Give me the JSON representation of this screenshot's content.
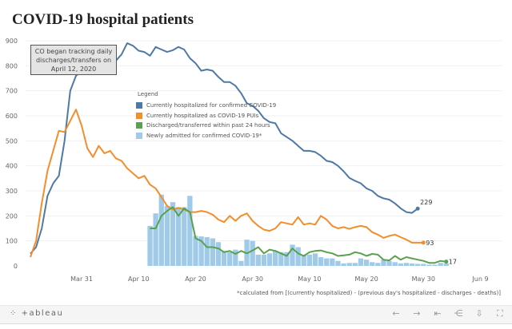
{
  "page_title": "COVID-19 hospital patients",
  "annotation": "CO began tracking daily discharges/transfers on April 12, 2020",
  "footnote": "*calculated from [(currently hospitalized) - (previous day's hospitalized - discharges - deaths)]",
  "toolbar": {
    "logo": "+ableau",
    "logo_icon": "tableau-logo-icon",
    "icons": [
      {
        "name": "undo-icon",
        "glyph": "←"
      },
      {
        "name": "redo-icon",
        "glyph": "→"
      },
      {
        "name": "revert-icon",
        "glyph": "⇤"
      },
      {
        "name": "share-icon",
        "glyph": "⋲"
      },
      {
        "name": "download-icon",
        "glyph": "⇩"
      },
      {
        "name": "fullscreen-icon",
        "glyph": "⛶"
      }
    ]
  },
  "chart_data": {
    "type": "line",
    "title": "COVID-19 hospital patients",
    "xlabel": "",
    "ylabel": "",
    "ylim": [
      0,
      900
    ],
    "yticks": [
      0,
      100,
      200,
      300,
      400,
      500,
      600,
      700,
      800,
      900
    ],
    "start_date": "Mar 22",
    "xticks": [
      {
        "label": "Mar 31",
        "day": 9
      },
      {
        "label": "Apr 10",
        "day": 19
      },
      {
        "label": "Apr 20",
        "day": 29
      },
      {
        "label": "Apr 30",
        "day": 39
      },
      {
        "label": "May 10",
        "day": 49
      },
      {
        "label": "May 20",
        "day": 59
      },
      {
        "label": "May 30",
        "day": 69
      },
      {
        "label": "Jun 9",
        "day": 79
      }
    ],
    "grid": true,
    "legend": {
      "title": "Legend",
      "position": "center",
      "entries": [
        {
          "label": "Currently hospitalized for confirmed COVID-19",
          "color": "#4e79a7"
        },
        {
          "label": "Currently hospitalized as COVID-19 PUIs",
          "color": "#f28e2b"
        },
        {
          "label": "Discharged/transferred within past 24 hours",
          "color": "#59a14f"
        },
        {
          "label": "Newly admitted for confirmed COVID-19*",
          "color": "#a0cbe8"
        }
      ]
    },
    "series": [
      {
        "name": "Currently hospitalized for confirmed COVID-19",
        "type": "line",
        "color": "#4e79a7",
        "start_day": 0,
        "end_label": "229",
        "values": [
          49,
          75,
          150,
          280,
          330,
          360,
          500,
          700,
          760,
          780,
          800,
          835,
          850,
          845,
          840,
          820,
          845,
          890,
          880,
          860,
          855,
          840,
          875,
          865,
          855,
          862,
          875,
          865,
          830,
          810,
          780,
          785,
          780,
          755,
          735,
          735,
          720,
          690,
          650,
          640,
          620,
          590,
          575,
          570,
          530,
          515,
          500,
          480,
          460,
          460,
          455,
          440,
          420,
          415,
          400,
          378,
          352,
          340,
          330,
          310,
          300,
          280,
          270,
          265,
          250,
          230,
          215,
          212,
          229
        ]
      },
      {
        "name": "Currently hospitalized as COVID-19 PUIs",
        "type": "line",
        "color": "#f28e2b",
        "start_day": 0,
        "end_label": "93",
        "values": [
          35,
          100,
          250,
          380,
          460,
          540,
          535,
          580,
          625,
          560,
          470,
          435,
          480,
          450,
          460,
          430,
          420,
          390,
          370,
          350,
          360,
          325,
          310,
          275,
          240,
          225,
          232,
          225,
          215,
          215,
          220,
          215,
          205,
          185,
          175,
          200,
          180,
          200,
          210,
          180,
          160,
          145,
          140,
          150,
          175,
          170,
          165,
          195,
          165,
          170,
          165,
          200,
          185,
          160,
          150,
          155,
          148,
          155,
          160,
          155,
          135,
          125,
          112,
          120,
          125,
          115,
          105,
          93,
          93,
          93
        ]
      },
      {
        "name": "Discharged/transferred within past 24 hours",
        "type": "line",
        "color": "#59a14f",
        "start_day": 21,
        "end_label": "17",
        "values": [
          150,
          150,
          200,
          220,
          235,
          200,
          230,
          215,
          110,
          100,
          75,
          75,
          70,
          55,
          60,
          48,
          60,
          50,
          62,
          75,
          50,
          65,
          60,
          50,
          40,
          70,
          50,
          40,
          55,
          60,
          62,
          55,
          50,
          40,
          42,
          45,
          55,
          50,
          40,
          48,
          45,
          25,
          22,
          40,
          25,
          35,
          30,
          25,
          20,
          12,
          12,
          20,
          17
        ]
      },
      {
        "name": "Newly admitted for confirmed COVID-19*",
        "type": "bar",
        "color": "#a0cbe8",
        "start_day": 21,
        "values": [
          160,
          210,
          285,
          240,
          255,
          235,
          235,
          280,
          120,
          118,
          115,
          110,
          95,
          60,
          55,
          65,
          20,
          105,
          100,
          45,
          45,
          50,
          60,
          55,
          55,
          85,
          75,
          45,
          45,
          50,
          35,
          30,
          30,
          20,
          10,
          12,
          12,
          30,
          25,
          15,
          12,
          25,
          20,
          15,
          10,
          12,
          10,
          8,
          8,
          5,
          5,
          12,
          10
        ]
      }
    ]
  }
}
